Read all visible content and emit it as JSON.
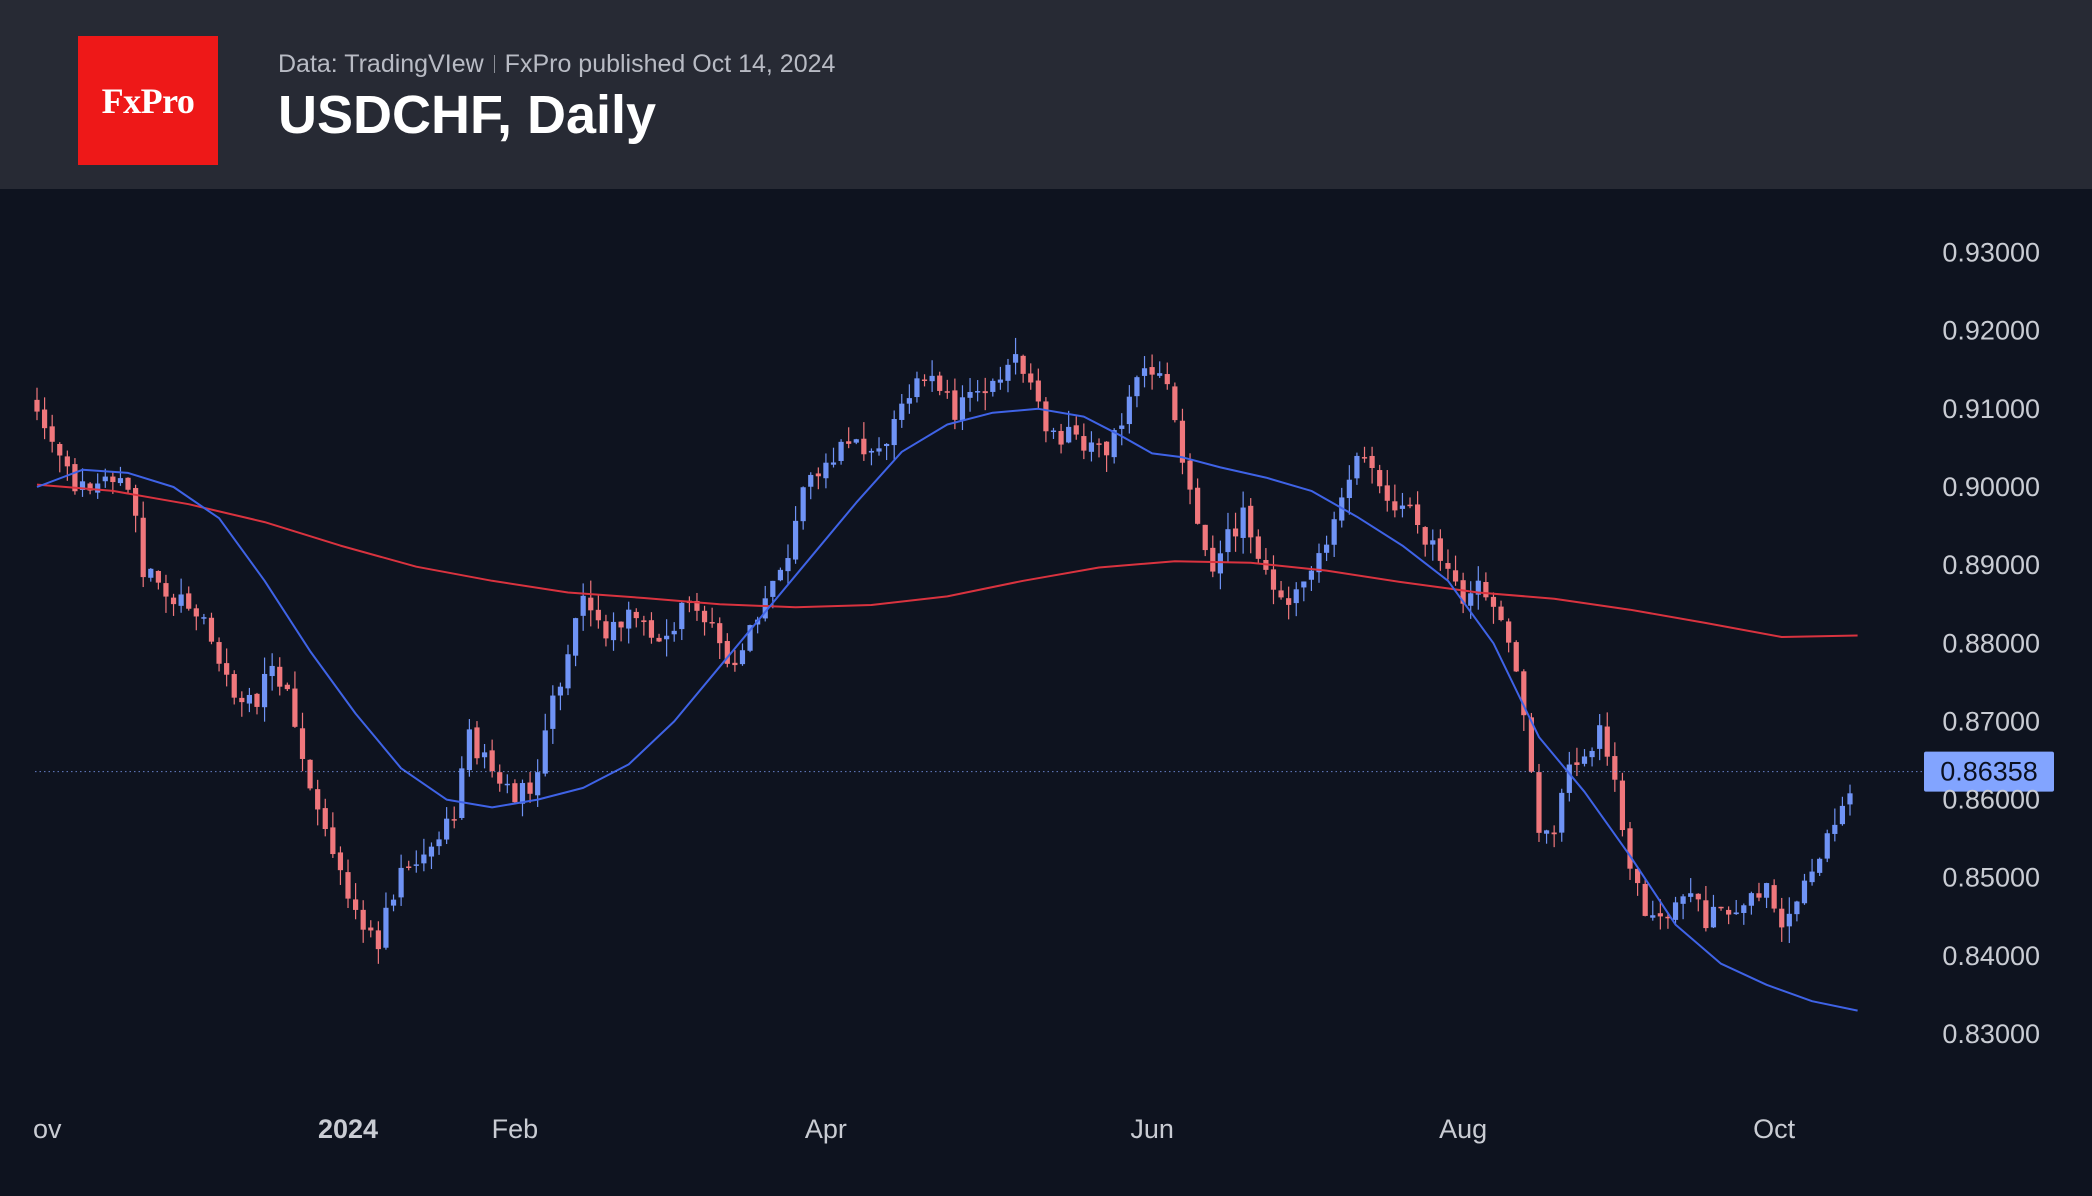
{
  "header": {
    "logo_text": "FxPro",
    "source": "Data: TradingVIew",
    "published": "FxPro published Oct 14, 2024",
    "title": "USDCHF, Daily"
  },
  "colors": {
    "background": "#0e131f",
    "header_background": "#272a34",
    "logo_background": "#ee1818",
    "up_candle": "#6f93f5",
    "down_candle": "#f0777c",
    "ma_fast": "#3f63e6",
    "ma_slow": "#d9333f",
    "last_price_label": "#82a4ff"
  },
  "chart_data": {
    "type": "candlestick",
    "symbol": "USDCHF",
    "timeframe": "Daily",
    "ylim": [
      0.8245,
      0.9325
    ],
    "y_ticks": [
      "0.93000",
      "0.92000",
      "0.91000",
      "0.90000",
      "0.89000",
      "0.88000",
      "0.87000",
      "0.86000",
      "0.85000",
      "0.84000",
      "0.83000"
    ],
    "x_ticks": [
      {
        "label": "ov",
        "bar": 0
      },
      {
        "label": "2024",
        "bar": 41,
        "bold": true
      },
      {
        "label": "Feb",
        "bar": 63
      },
      {
        "label": "Apr",
        "bar": 104
      },
      {
        "label": "Jun",
        "bar": 147
      },
      {
        "label": "Aug",
        "bar": 188
      },
      {
        "label": "Oct",
        "bar": 229
      }
    ],
    "last_price": "0.86358",
    "bar_count": 240,
    "anchors": [
      [
        0,
        0.9108
      ],
      [
        3,
        0.9045
      ],
      [
        5,
        0.9005
      ],
      [
        8,
        0.8995
      ],
      [
        10,
        0.902
      ],
      [
        12,
        0.901
      ],
      [
        14,
        0.889
      ],
      [
        18,
        0.886
      ],
      [
        22,
        0.882
      ],
      [
        26,
        0.8735
      ],
      [
        29,
        0.873
      ],
      [
        31,
        0.877
      ],
      [
        33,
        0.8745
      ],
      [
        36,
        0.862
      ],
      [
        39,
        0.8535
      ],
      [
        42,
        0.8445
      ],
      [
        45,
        0.842
      ],
      [
        48,
        0.851
      ],
      [
        51,
        0.8535
      ],
      [
        55,
        0.8575
      ],
      [
        57,
        0.8685
      ],
      [
        60,
        0.863
      ],
      [
        63,
        0.86
      ],
      [
        66,
        0.863
      ],
      [
        68,
        0.8725
      ],
      [
        70,
        0.878
      ],
      [
        72,
        0.887
      ],
      [
        75,
        0.881
      ],
      [
        78,
        0.8835
      ],
      [
        82,
        0.8805
      ],
      [
        86,
        0.885
      ],
      [
        89,
        0.8835
      ],
      [
        91,
        0.8775
      ],
      [
        93,
        0.8785
      ],
      [
        96,
        0.8865
      ],
      [
        99,
        0.8905
      ],
      [
        101,
        0.899
      ],
      [
        103,
        0.9015
      ],
      [
        105,
        0.904
      ],
      [
        108,
        0.9065
      ],
      [
        110,
        0.9035
      ],
      [
        112,
        0.905
      ],
      [
        114,
        0.911
      ],
      [
        116,
        0.914
      ],
      [
        119,
        0.9125
      ],
      [
        121,
        0.9095
      ],
      [
        123,
        0.912
      ],
      [
        125,
        0.9115
      ],
      [
        127,
        0.915
      ],
      [
        129,
        0.917
      ],
      [
        131,
        0.9135
      ],
      [
        133,
        0.906
      ],
      [
        136,
        0.907
      ],
      [
        139,
        0.9055
      ],
      [
        141,
        0.9045
      ],
      [
        143,
        0.9085
      ],
      [
        145,
        0.914
      ],
      [
        147,
        0.915
      ],
      [
        149,
        0.913
      ],
      [
        151,
        0.904
      ],
      [
        153,
        0.896
      ],
      [
        155,
        0.889
      ],
      [
        157,
        0.894
      ],
      [
        159,
        0.896
      ],
      [
        161,
        0.891
      ],
      [
        163,
        0.887
      ],
      [
        165,
        0.884
      ],
      [
        167,
        0.889
      ],
      [
        170,
        0.892
      ],
      [
        172,
        0.898
      ],
      [
        174,
        0.9035
      ],
      [
        176,
        0.902
      ],
      [
        178,
        0.8975
      ],
      [
        180,
        0.8985
      ],
      [
        182,
        0.895
      ],
      [
        184,
        0.8925
      ],
      [
        186,
        0.889
      ],
      [
        188,
        0.885
      ],
      [
        190,
        0.8875
      ],
      [
        192,
        0.8835
      ],
      [
        194,
        0.88
      ],
      [
        196,
        0.87
      ],
      [
        198,
        0.857
      ],
      [
        200,
        0.855
      ],
      [
        202,
        0.864
      ],
      [
        204,
        0.8645
      ],
      [
        206,
        0.87
      ],
      [
        208,
        0.862
      ],
      [
        210,
        0.852
      ],
      [
        212,
        0.846
      ],
      [
        214,
        0.845
      ],
      [
        216,
        0.8475
      ],
      [
        218,
        0.849
      ],
      [
        220,
        0.844
      ],
      [
        222,
        0.847
      ],
      [
        224,
        0.8455
      ],
      [
        226,
        0.847
      ],
      [
        228,
        0.848
      ],
      [
        230,
        0.845
      ],
      [
        232,
        0.848
      ],
      [
        234,
        0.85
      ],
      [
        236,
        0.8555
      ],
      [
        238,
        0.858
      ],
      [
        240,
        0.8636
      ]
    ],
    "ma_fast_points": [
      [
        0,
        0.9
      ],
      [
        6,
        0.9022
      ],
      [
        12,
        0.9018
      ],
      [
        18,
        0.9
      ],
      [
        24,
        0.896
      ],
      [
        30,
        0.888
      ],
      [
        36,
        0.879
      ],
      [
        42,
        0.871
      ],
      [
        48,
        0.864
      ],
      [
        54,
        0.86
      ],
      [
        60,
        0.859
      ],
      [
        66,
        0.86
      ],
      [
        72,
        0.8615
      ],
      [
        78,
        0.8645
      ],
      [
        84,
        0.87
      ],
      [
        90,
        0.877
      ],
      [
        96,
        0.884
      ],
      [
        102,
        0.891
      ],
      [
        108,
        0.898
      ],
      [
        114,
        0.9045
      ],
      [
        120,
        0.908
      ],
      [
        126,
        0.9095
      ],
      [
        132,
        0.91
      ],
      [
        138,
        0.909
      ],
      [
        143,
        0.9065
      ],
      [
        147,
        0.9043
      ],
      [
        151,
        0.9038
      ],
      [
        156,
        0.9025
      ],
      [
        162,
        0.9012
      ],
      [
        168,
        0.8995
      ],
      [
        174,
        0.8962
      ],
      [
        180,
        0.8925
      ],
      [
        186,
        0.888
      ],
      [
        192,
        0.88
      ],
      [
        198,
        0.868
      ],
      [
        204,
        0.861
      ],
      [
        210,
        0.8528
      ],
      [
        216,
        0.844
      ],
      [
        222,
        0.839
      ],
      [
        228,
        0.8363
      ],
      [
        234,
        0.8342
      ],
      [
        240,
        0.833
      ]
    ],
    "ma_slow_points": [
      [
        0,
        0.9003
      ],
      [
        10,
        0.8995
      ],
      [
        20,
        0.8978
      ],
      [
        30,
        0.8955
      ],
      [
        40,
        0.8925
      ],
      [
        50,
        0.8898
      ],
      [
        60,
        0.888
      ],
      [
        70,
        0.8865
      ],
      [
        80,
        0.8858
      ],
      [
        90,
        0.885
      ],
      [
        100,
        0.8846
      ],
      [
        110,
        0.8849
      ],
      [
        120,
        0.886
      ],
      [
        130,
        0.888
      ],
      [
        140,
        0.8897
      ],
      [
        150,
        0.8905
      ],
      [
        160,
        0.8903
      ],
      [
        170,
        0.8893
      ],
      [
        180,
        0.8878
      ],
      [
        190,
        0.8865
      ],
      [
        200,
        0.8857
      ],
      [
        210,
        0.8843
      ],
      [
        220,
        0.8826
      ],
      [
        230,
        0.8808
      ],
      [
        240,
        0.881
      ]
    ]
  }
}
